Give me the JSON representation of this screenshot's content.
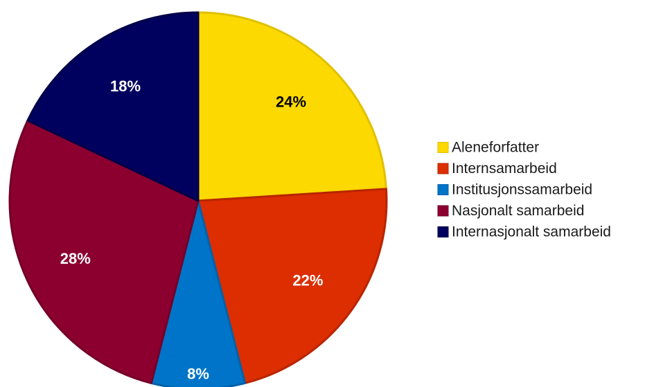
{
  "chart_data": {
    "type": "pie",
    "title": "",
    "legend_position": "right",
    "slices": [
      {
        "label": "Aleneforfatter",
        "value": 24,
        "value_label": "24%",
        "color": "#FCD900",
        "stroke": "#E0C000",
        "label_color": "#000000"
      },
      {
        "label": "Internsamarbeid",
        "value": 22,
        "value_label": "22%",
        "color": "#DC2E00",
        "stroke": "#B82500",
        "label_color": "#FFFFFF"
      },
      {
        "label": "Institusjonssamarbeid",
        "value": 8,
        "value_label": "8%",
        "color": "#0074C8",
        "stroke": "#0062AA",
        "label_color": "#FFFFFF"
      },
      {
        "label": "Nasjonalt samarbeid",
        "value": 28,
        "value_label": "28%",
        "color": "#8C0030",
        "stroke": "#740028",
        "label_color": "#FFFFFF"
      },
      {
        "label": "Internasjonalt samarbeid",
        "value": 18,
        "value_label": "18%",
        "color": "#00005E",
        "stroke": "#000048",
        "label_color": "#FFFFFF"
      }
    ]
  }
}
